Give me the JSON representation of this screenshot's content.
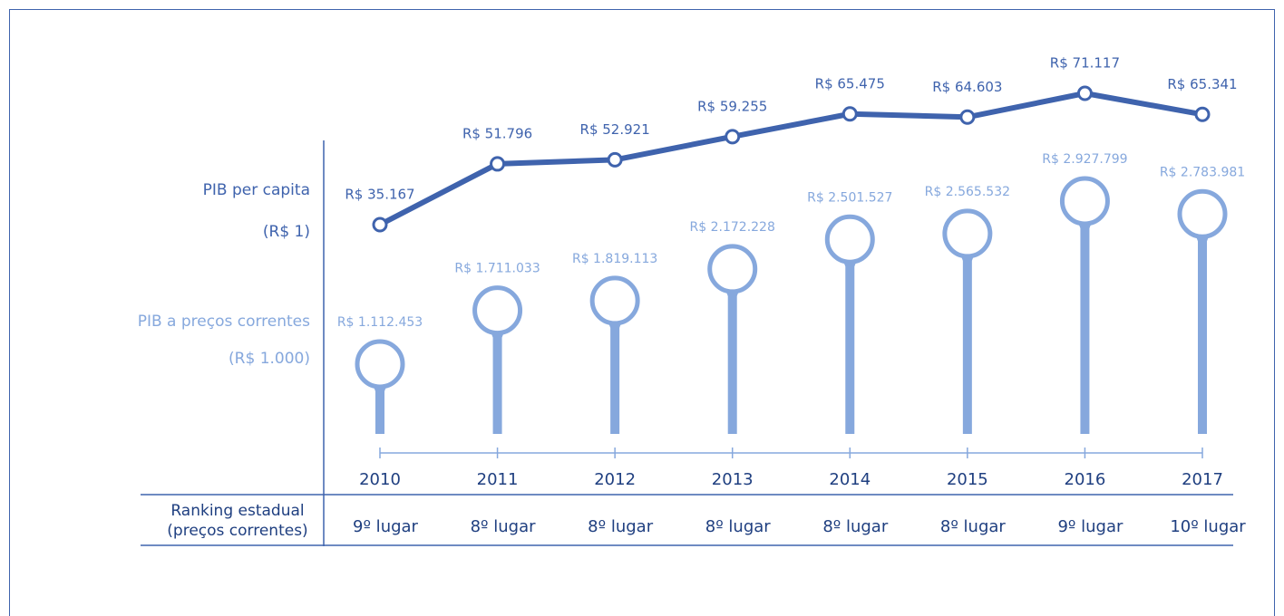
{
  "chart_data": {
    "type": "line",
    "categories": [
      "2010",
      "2011",
      "2012",
      "2013",
      "2014",
      "2015",
      "2016",
      "2017"
    ],
    "series": [
      {
        "name": "PIB per capita",
        "unit": "(R$ 1)",
        "type": "line",
        "color": "#3f63ad",
        "values": [
          35167,
          51796,
          52921,
          59255,
          65475,
          64603,
          71117,
          65341
        ],
        "value_labels": [
          "R$ 35.167",
          "R$ 51.796",
          "R$ 52.921",
          "R$ 59.255",
          "R$ 65.475",
          "R$ 64.603",
          "R$ 71.117",
          "R$ 65.341"
        ]
      },
      {
        "name": "PIB a preços correntes",
        "unit": "(R$ 1.000)",
        "type": "lollipop",
        "color": "#86a8dd",
        "values": [
          1112453,
          1711033,
          1819113,
          2172228,
          2501527,
          2565532,
          2927799,
          2783981
        ],
        "value_labels": [
          "R$ 1.112.453",
          "R$ 1.711.033",
          "R$ 1.819.113",
          "R$ 2.172.228",
          "R$ 2.501.527",
          "R$ 2.565.532",
          "R$ 2.927.799",
          "R$ 2.783.981"
        ]
      }
    ],
    "ranking_label": [
      "Ranking estadual",
      "(preços correntes)"
    ],
    "ranking": [
      "9º lugar",
      "8º lugar",
      "8º lugar",
      "8º lugar",
      "8º lugar",
      "8º lugar",
      "9º lugar",
      "10º lugar"
    ]
  }
}
